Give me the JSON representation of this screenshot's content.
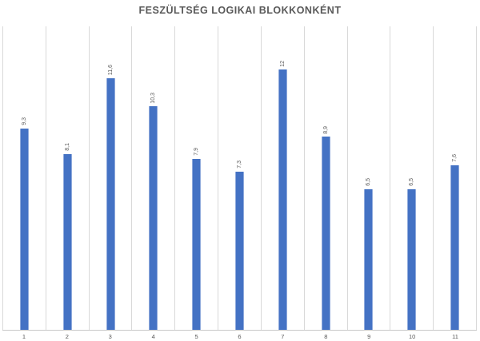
{
  "chart_data": {
    "type": "bar",
    "title": "FESZÜLTSÉG LOGIKAI BLOKKONKÉNT",
    "categories": [
      "1",
      "2",
      "3",
      "4",
      "5",
      "6",
      "7",
      "8",
      "9",
      "10",
      "11"
    ],
    "values": [
      9.3,
      8.1,
      11.6,
      10.3,
      7.9,
      7.3,
      12,
      8.9,
      6.5,
      6.5,
      7.6
    ],
    "value_labels": [
      "9,3",
      "8,1",
      "11,6",
      "10,3",
      "7,9",
      "7,3",
      "12",
      "8,9",
      "6,5",
      "6,5",
      "7,6"
    ],
    "xlabel": "",
    "ylabel": "",
    "ylim": [
      0,
      14
    ],
    "grid": "vertical-only",
    "legend": "none",
    "data_label_rotation": "vertical-bottom-to-top",
    "colors": {
      "bar_fill": "#4472C4",
      "bar_edge": "#8FAADC",
      "gridline": "#D9D9D9",
      "axis_line": "#C9C9C9",
      "title_text": "#595959",
      "label_text": "#595959",
      "background": "#FFFFFF"
    }
  }
}
